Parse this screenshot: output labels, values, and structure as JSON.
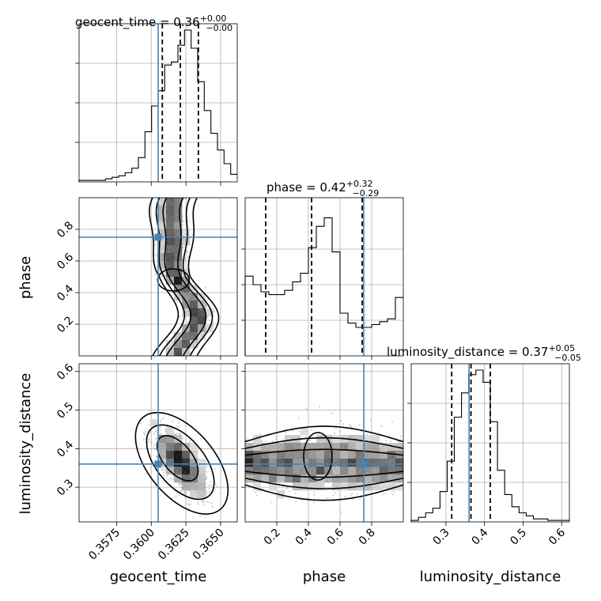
{
  "chart_data": {
    "type": "corner",
    "parameters": [
      "geocent_time",
      "phase",
      "luminosity_distance"
    ],
    "axis_labels": [
      "geocent_time",
      "phase",
      "luminosity_distance"
    ],
    "titles": [
      {
        "param": "geocent_time",
        "text": "geocent_time = 0.36",
        "plus": "+0.00",
        "minus": "−0.00"
      },
      {
        "param": "phase",
        "text": "phase = 0.42",
        "plus": "+0.32",
        "minus": "−0.29"
      },
      {
        "param": "luminosity_distance",
        "text": "luminosity_distance = 0.37",
        "plus": "+0.05",
        "minus": "−0.05"
      }
    ],
    "ranges": {
      "geocent_time": [
        0.3548,
        0.3662
      ],
      "phase": [
        0.0,
        1.0
      ],
      "luminosity_distance": [
        0.21,
        0.62
      ]
    },
    "ticks": {
      "geocent_time": {
        "values": [
          0.3575,
          0.36,
          0.3625,
          0.365
        ],
        "labels": [
          "0.3575",
          "0.3600",
          "0.3625",
          "0.3650"
        ]
      },
      "phase": {
        "values": [
          0.2,
          0.4,
          0.6,
          0.8
        ],
        "labels": [
          "0.2",
          "0.4",
          "0.6",
          "0.8"
        ]
      },
      "luminosity_distance": {
        "values": [
          0.3,
          0.4,
          0.5,
          0.6
        ],
        "labels": [
          "0.3",
          "0.4",
          "0.5",
          "0.6"
        ]
      }
    },
    "truths": {
      "geocent_time": 0.3605,
      "phase": 0.75,
      "luminosity_distance": 0.36
    },
    "quantiles": {
      "geocent_time": [
        0.3608,
        0.3621,
        0.3634
      ],
      "phase": [
        0.13,
        0.42,
        0.74
      ],
      "luminosity_distance": [
        0.315,
        0.365,
        0.415
      ]
    },
    "histograms": {
      "geocent_time": [
        0.01,
        0.01,
        0.01,
        0.01,
        0.02,
        0.03,
        0.04,
        0.06,
        0.09,
        0.16,
        0.33,
        0.5,
        0.6,
        0.77,
        0.79,
        0.9,
        1.0,
        0.88,
        0.66,
        0.47,
        0.32,
        0.21,
        0.12,
        0.05
      ],
      "phase": [
        0.56,
        0.5,
        0.45,
        0.43,
        0.43,
        0.46,
        0.52,
        0.58,
        0.76,
        0.91,
        0.97,
        0.73,
        0.3,
        0.23,
        0.2,
        0.2,
        0.22,
        0.24,
        0.26,
        0.41
      ],
      "luminosity_distance": [
        0.01,
        0.03,
        0.06,
        0.09,
        0.2,
        0.4,
        0.69,
        0.85,
        0.97,
        1.0,
        0.92,
        0.66,
        0.34,
        0.18,
        0.1,
        0.06,
        0.04,
        0.02,
        0.02,
        0.01,
        0.01,
        0.01
      ]
    },
    "grid": true,
    "truth_color": "#4682b4"
  }
}
